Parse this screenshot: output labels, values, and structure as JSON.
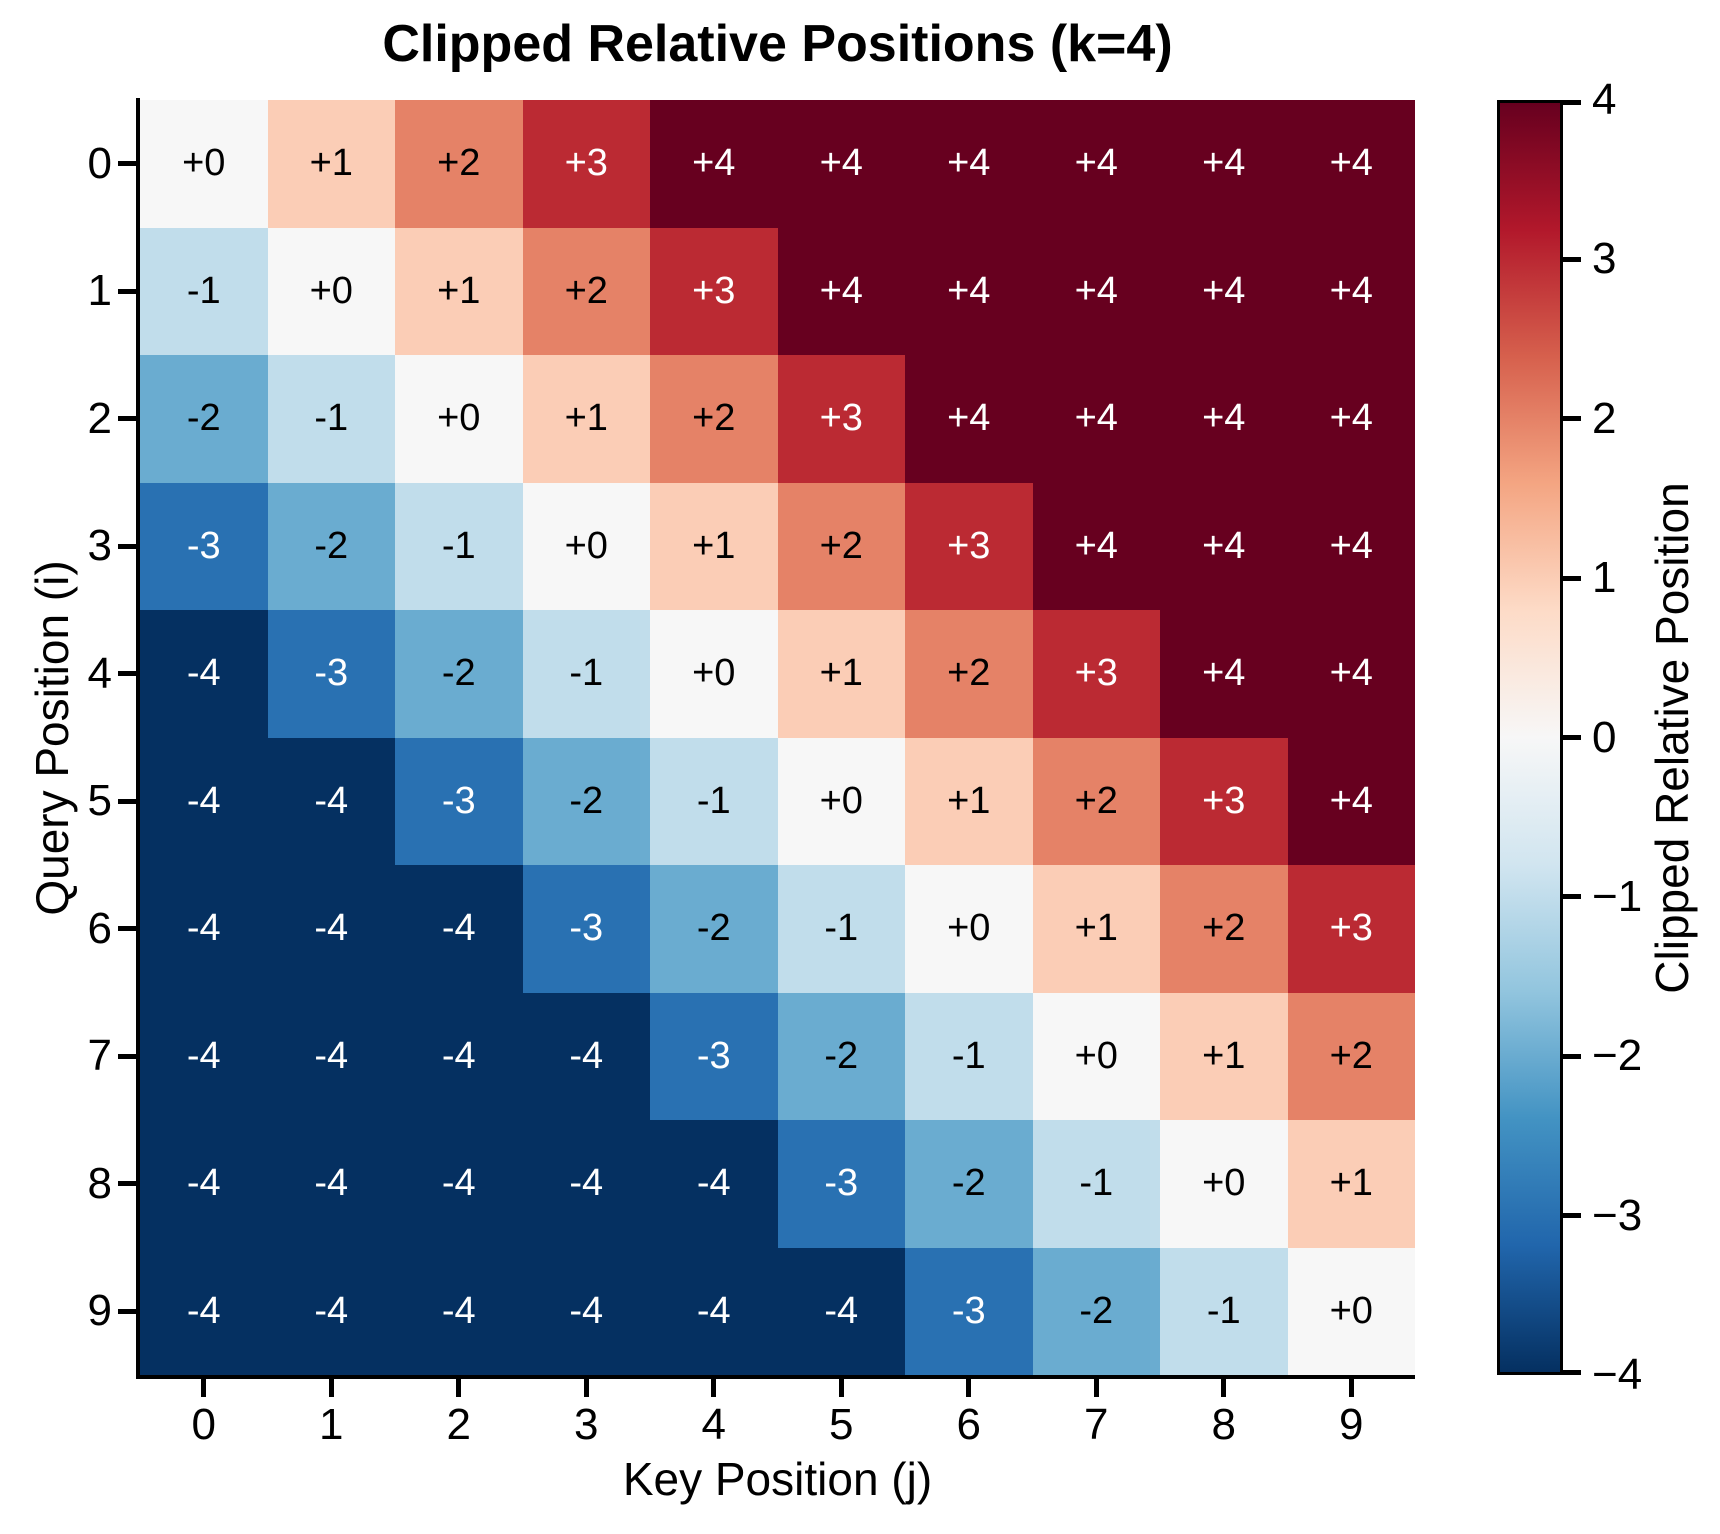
{
  "chart_data": {
    "type": "heatmap",
    "title": "Clipped Relative Positions (k=4)",
    "xlabel": "Key Position (j)",
    "ylabel": "Query Position (i)",
    "colorbar_label": "Clipped Relative Position",
    "clip_k": 4,
    "vmin": -4,
    "vmax": 4,
    "x_tick_labels": [
      "0",
      "1",
      "2",
      "3",
      "4",
      "5",
      "6",
      "7",
      "8",
      "9"
    ],
    "y_tick_labels": [
      "0",
      "1",
      "2",
      "3",
      "4",
      "5",
      "6",
      "7",
      "8",
      "9"
    ],
    "colorbar_tick_labels": [
      "4",
      "3",
      "2",
      "1",
      "0",
      "−1",
      "−2",
      "−3",
      "−4"
    ],
    "values": [
      [
        0,
        1,
        2,
        3,
        4,
        4,
        4,
        4,
        4,
        4
      ],
      [
        -1,
        0,
        1,
        2,
        3,
        4,
        4,
        4,
        4,
        4
      ],
      [
        -2,
        -1,
        0,
        1,
        2,
        3,
        4,
        4,
        4,
        4
      ],
      [
        -3,
        -2,
        -1,
        0,
        1,
        2,
        3,
        4,
        4,
        4
      ],
      [
        -4,
        -3,
        -2,
        -1,
        0,
        1,
        2,
        3,
        4,
        4
      ],
      [
        -4,
        -4,
        -3,
        -2,
        -1,
        0,
        1,
        2,
        3,
        4
      ],
      [
        -4,
        -4,
        -4,
        -3,
        -2,
        -1,
        0,
        1,
        2,
        3
      ],
      [
        -4,
        -4,
        -4,
        -4,
        -3,
        -2,
        -1,
        0,
        1,
        2
      ],
      [
        -4,
        -4,
        -4,
        -4,
        -4,
        -3,
        -2,
        -1,
        0,
        1
      ],
      [
        -4,
        -4,
        -4,
        -4,
        -4,
        -4,
        -3,
        -2,
        -1,
        0
      ]
    ],
    "cell_label_positive_prefix": "+",
    "value_colors": {
      "-4": "#053061",
      "-3": "#2971b2",
      "-2": "#6aacd0",
      "-1": "#c1ddeb",
      "0": "#f7f7f7",
      "1": "#fbcdb6",
      "2": "#e58267",
      "3": "#bb2a33",
      "4": "#67001f"
    },
    "cell_text_dark": "#000000",
    "cell_text_light": "#ffffff",
    "light_text_abs_threshold": 3,
    "colorbar_gradient_top_to_bottom": [
      "#67001f",
      "#b2182b",
      "#d6604d",
      "#f4a582",
      "#fddbc7",
      "#f7f7f7",
      "#d1e5f0",
      "#92c5de",
      "#4393c3",
      "#2166ac",
      "#053061"
    ],
    "axis_color": "#000000",
    "background_color": "#ffffff"
  }
}
